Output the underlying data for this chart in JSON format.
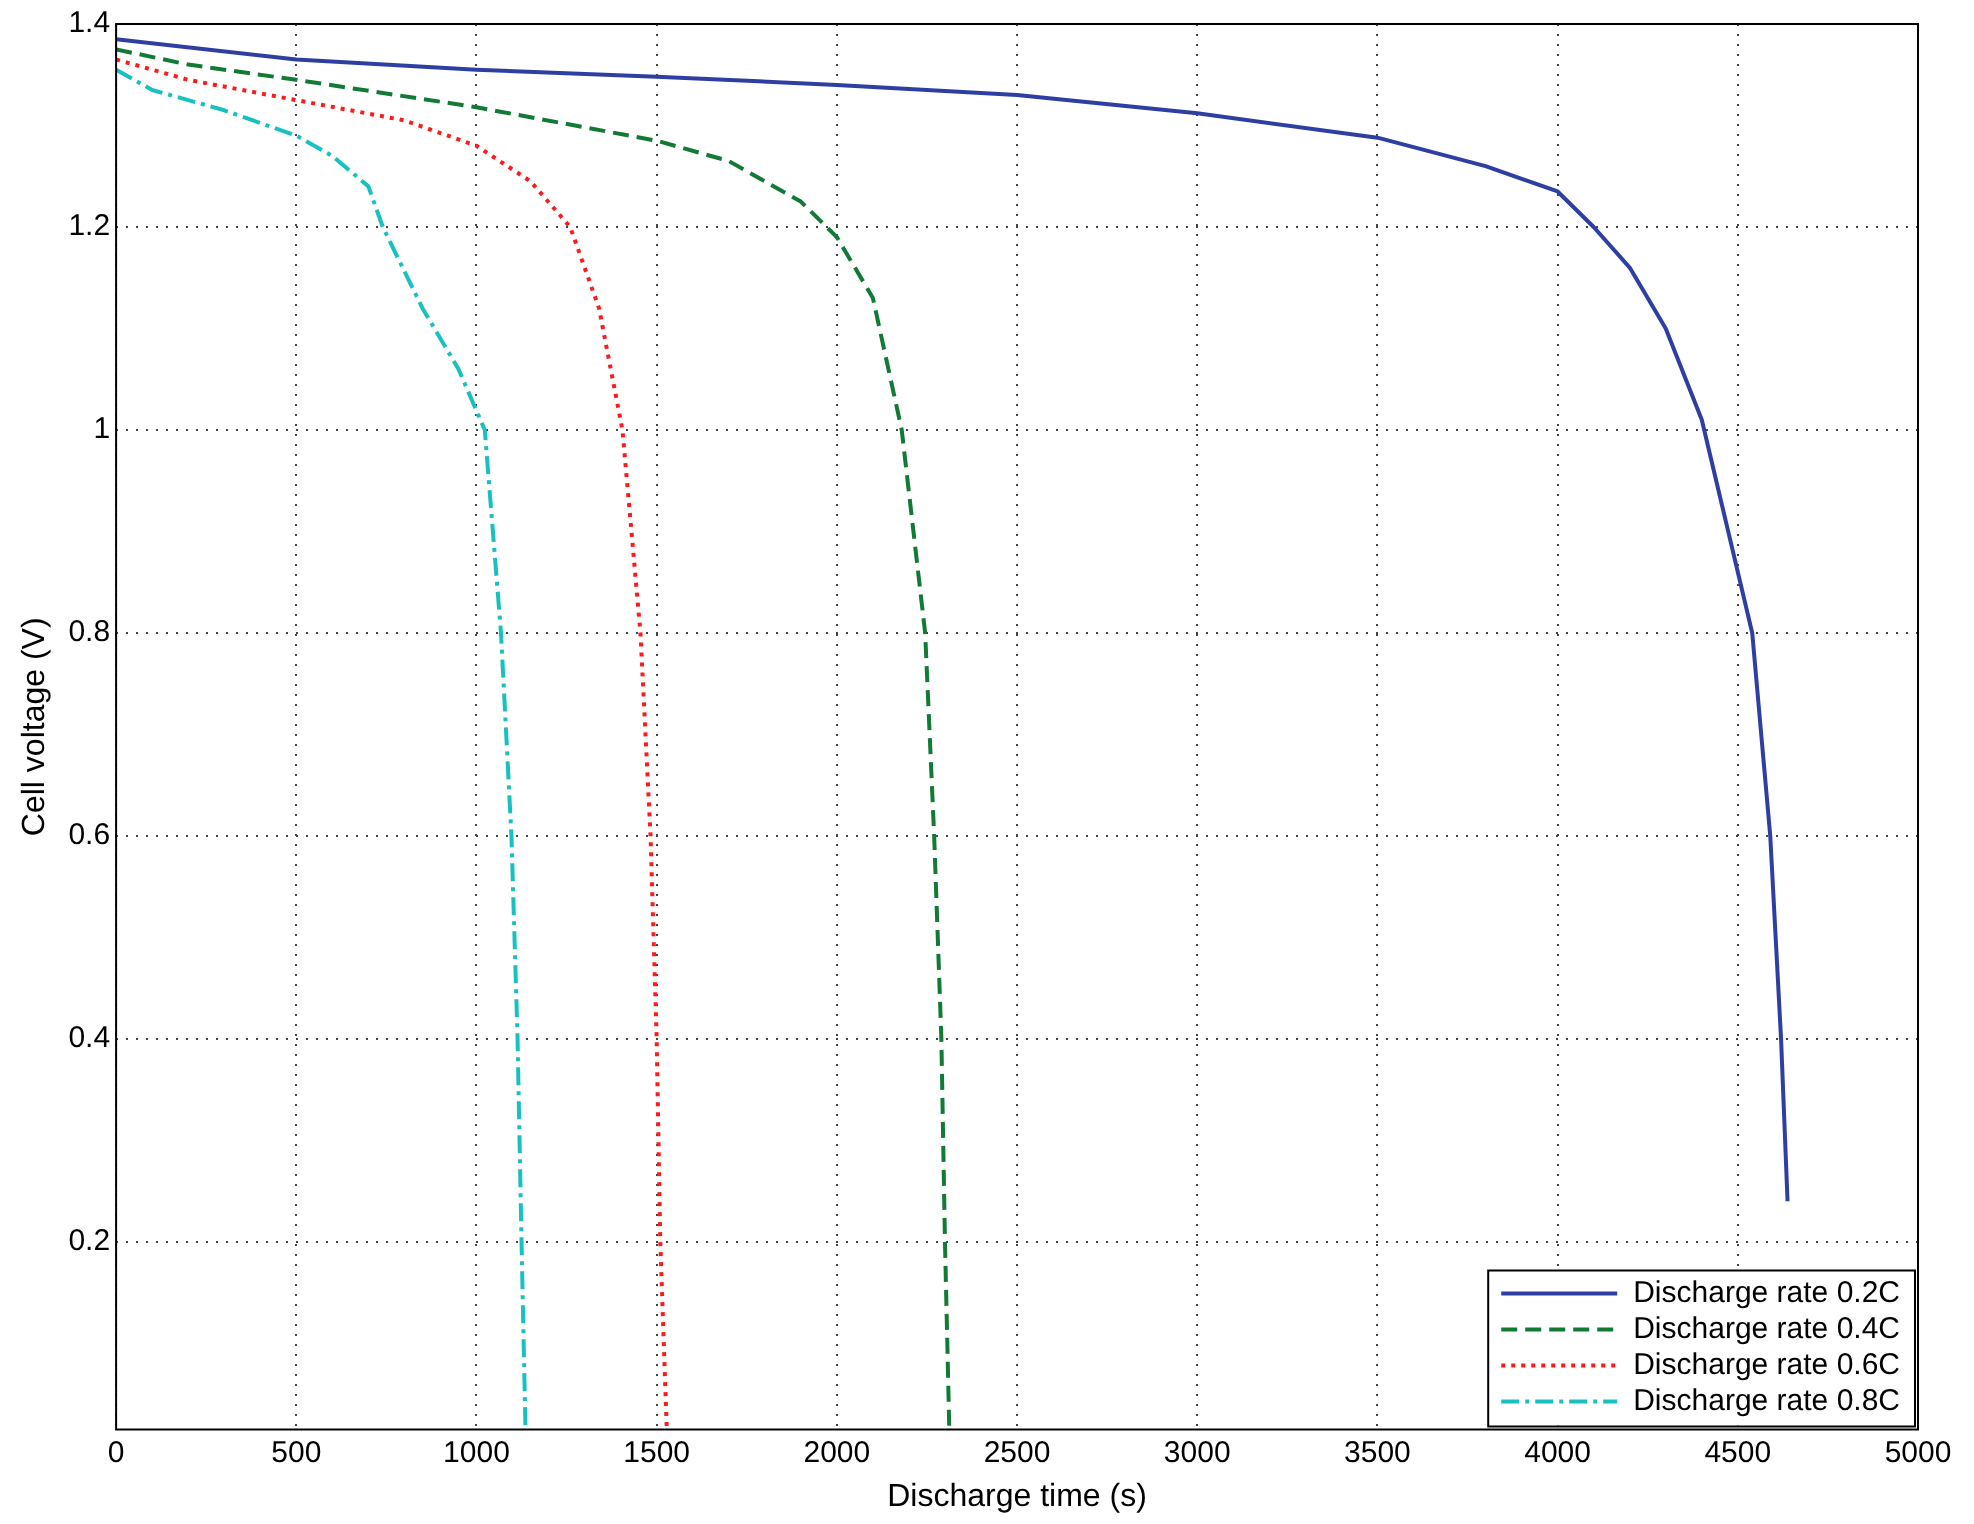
{
  "chart_data": {
    "type": "line",
    "xlabel": "Discharge time (s)",
    "ylabel": "Cell voltage (V)",
    "xlim": [
      0,
      5000
    ],
    "xticks": [
      0,
      500,
      1000,
      1500,
      2000,
      2500,
      3000,
      3500,
      4000,
      4500,
      5000
    ],
    "ylim": [
      0.015,
      1.4
    ],
    "yticks": [
      0.2,
      0.4,
      0.6,
      0.8,
      1,
      1.2,
      1.4
    ],
    "grid": true,
    "legend": "bottom right",
    "marker": "none",
    "series": [
      {
        "name": "Discharge rate 0.2C",
        "color": "#2e3fa3",
        "line_style": "solid",
        "x": [
          0,
          500,
          1000,
          1500,
          2000,
          2500,
          3000,
          3500,
          3800,
          4000,
          4100,
          4200,
          4300,
          4400,
          4460,
          4540,
          4590,
          4620,
          4638
        ],
        "values": [
          1.385,
          1.365,
          1.355,
          1.348,
          1.34,
          1.33,
          1.312,
          1.288,
          1.26,
          1.235,
          1.2,
          1.16,
          1.1,
          1.01,
          0.92,
          0.8,
          0.6,
          0.4,
          0.24
        ]
      },
      {
        "name": "Discharge rate 0.4C",
        "color": "#117a35",
        "line_style": "dashed",
        "x": [
          0,
          200,
          500,
          1000,
          1500,
          1700,
          1900,
          2000,
          2100,
          2180,
          2245,
          2270,
          2290,
          2300,
          2312
        ],
        "values": [
          1.375,
          1.36,
          1.345,
          1.318,
          1.285,
          1.265,
          1.225,
          1.19,
          1.13,
          1.0,
          0.8,
          0.6,
          0.4,
          0.2,
          0.015
        ]
      },
      {
        "name": "Discharge rate 0.6C",
        "color": "#ff1a1a",
        "line_style": "dotted",
        "x": [
          0,
          200,
          500,
          800,
          1000,
          1150,
          1260,
          1340,
          1405,
          1455,
          1483,
          1500,
          1510,
          1528
        ],
        "values": [
          1.365,
          1.345,
          1.325,
          1.305,
          1.28,
          1.245,
          1.2,
          1.12,
          1.0,
          0.8,
          0.6,
          0.4,
          0.2,
          0.015
        ]
      },
      {
        "name": "Discharge rate 0.8C",
        "color": "#19c0c0",
        "line_style": "dashdot",
        "x": [
          0,
          100,
          300,
          500,
          600,
          700,
          740,
          850,
          950,
          1023,
          1068,
          1097,
          1114,
          1125,
          1136
        ],
        "values": [
          1.355,
          1.335,
          1.315,
          1.29,
          1.27,
          1.24,
          1.2,
          1.12,
          1.06,
          1.0,
          0.8,
          0.6,
          0.4,
          0.2,
          0.015
        ]
      }
    ]
  }
}
